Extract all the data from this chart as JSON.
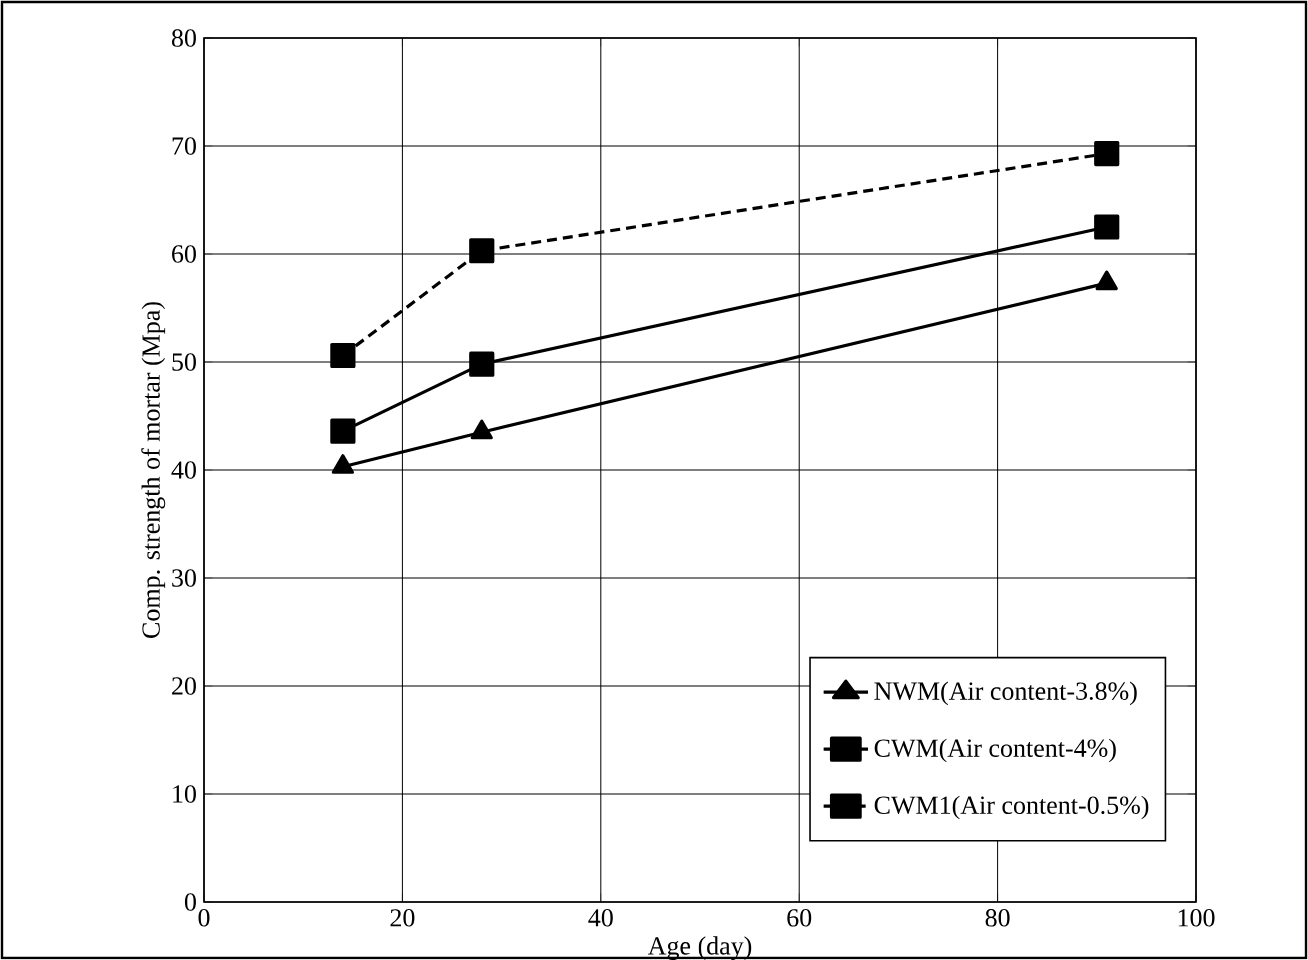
{
  "chart_data": {
    "type": "line",
    "xlabel": "Age (day)",
    "ylabel": "Comp. strength of mortar (Mpa)",
    "xlim": [
      0,
      100
    ],
    "xticks": [
      0,
      20,
      40,
      60,
      80,
      100
    ],
    "ylim": [
      0,
      80
    ],
    "yticks": [
      0,
      10,
      20,
      30,
      40,
      50,
      60,
      70,
      80
    ],
    "grid": true,
    "legend": "bottom right",
    "series": [
      {
        "name": "NWM(Air content-3.8%)",
        "color": "#000000",
        "marker": "triangle",
        "line_style": "solid",
        "x": [
          14,
          28,
          91
        ],
        "values": [
          40.3,
          43.5,
          57.3
        ]
      },
      {
        "name": "CWM(Air content-4%)",
        "color": "#000000",
        "marker": "square",
        "line_style": "solid",
        "x": [
          14,
          28,
          91
        ],
        "values": [
          43.6,
          49.8,
          62.5
        ]
      },
      {
        "name": "CWM1(Air content-0.5%)",
        "color": "#000000",
        "marker": "square",
        "line_style": "dashed",
        "x": [
          14,
          28,
          91
        ],
        "values": [
          50.6,
          60.3,
          69.3
        ]
      }
    ]
  }
}
